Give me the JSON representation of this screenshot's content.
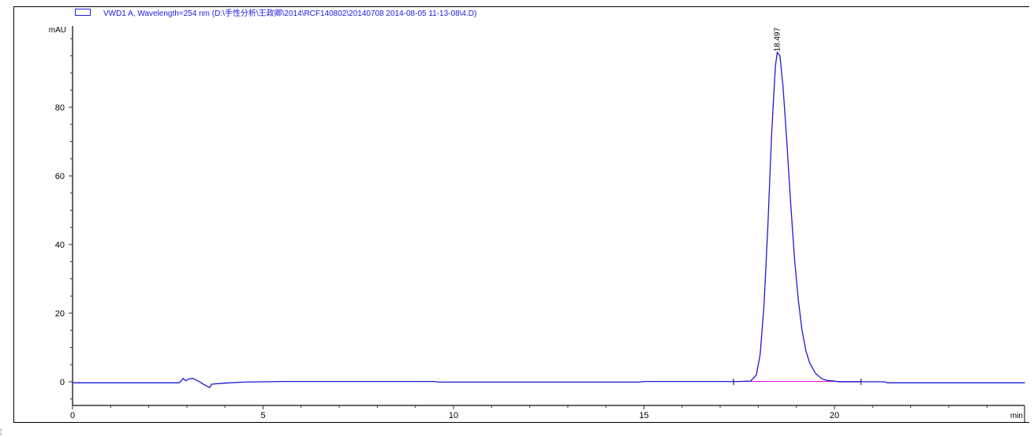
{
  "chart_data": {
    "type": "line",
    "legend": "VWD1 A, Wavelength=254 nm (D:\\手性分析\\王政卿\\2014\\RCF140802\\20140708 2014-08-05 11-13-08\\4.D)",
    "ylabel": "mAU",
    "xlabel": "min",
    "xlim": [
      0,
      25
    ],
    "ylim": [
      -7,
      103
    ],
    "x_ticks": [
      0,
      5,
      10,
      15,
      20
    ],
    "y_ticks": [
      0,
      20,
      40,
      60,
      80
    ],
    "grid": false,
    "legend_position": "top-left",
    "colors": {
      "signal": "#1a1ad6",
      "baseline": "#e020e0"
    },
    "series": [
      {
        "points": [
          [
            0,
            -0.3
          ],
          [
            2.8,
            -0.3
          ],
          [
            2.85,
            0.2
          ],
          [
            2.9,
            1.0
          ],
          [
            2.97,
            0.3
          ],
          [
            3.05,
            0.8
          ],
          [
            3.15,
            1.0
          ],
          [
            3.3,
            0.2
          ],
          [
            3.45,
            -0.8
          ],
          [
            3.6,
            -1.7
          ],
          [
            3.65,
            -0.7
          ],
          [
            4.0,
            -0.4
          ],
          [
            4.5,
            -0.1
          ],
          [
            5.5,
            0.1
          ],
          [
            9.5,
            0.1
          ],
          [
            9.6,
            -0.1
          ],
          [
            14.9,
            -0.1
          ],
          [
            15.0,
            0.1
          ],
          [
            17.5,
            0.1
          ],
          [
            17.8,
            0.2
          ],
          [
            17.95,
            2
          ],
          [
            18.05,
            8
          ],
          [
            18.15,
            22
          ],
          [
            18.25,
            45
          ],
          [
            18.35,
            72
          ],
          [
            18.45,
            92
          ],
          [
            18.5,
            96
          ],
          [
            18.57,
            95
          ],
          [
            18.65,
            86
          ],
          [
            18.75,
            70
          ],
          [
            18.85,
            52
          ],
          [
            18.95,
            36
          ],
          [
            19.05,
            24
          ],
          [
            19.15,
            15
          ],
          [
            19.25,
            9
          ],
          [
            19.35,
            5.5
          ],
          [
            19.5,
            2.5
          ],
          [
            19.65,
            1.0
          ],
          [
            19.8,
            0.4
          ],
          [
            20.0,
            0.2
          ],
          [
            20.1,
            0
          ],
          [
            21.3,
            0
          ],
          [
            21.4,
            -0.3
          ],
          [
            21.8,
            -0.3
          ],
          [
            25,
            -0.3
          ]
        ]
      }
    ],
    "peaks": [
      {
        "rt": 18.497,
        "label": "18.497",
        "height": 96
      }
    ],
    "integration_baseline": [
      [
        17.35,
        0.1
      ],
      [
        20.7,
        0.1
      ]
    ],
    "event_marks": [
      17.35,
      20.7
    ]
  }
}
